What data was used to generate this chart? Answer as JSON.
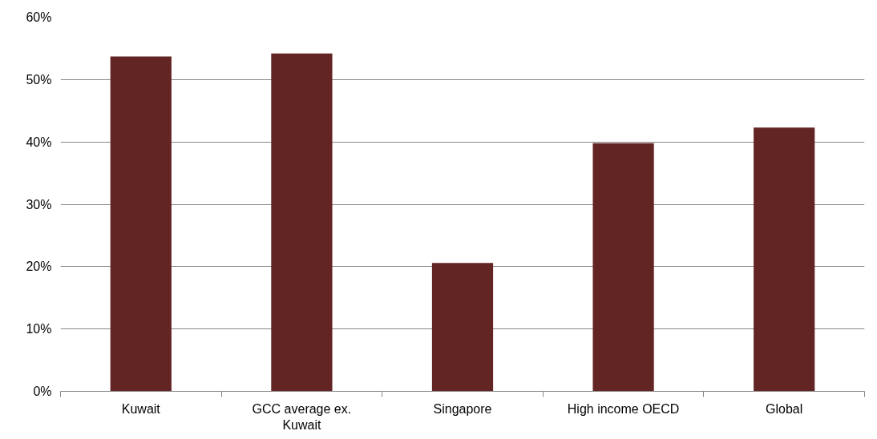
{
  "chart_data": {
    "type": "bar",
    "categories": [
      "Kuwait",
      "GCC average ex. Kuwait",
      "Singapore",
      "High income OECD",
      "Global"
    ],
    "values": [
      53.7,
      54.2,
      20.6,
      39.8,
      42.3
    ],
    "color": "#632523",
    "ylim": [
      0,
      60
    ],
    "yticks": [
      {
        "value": 0,
        "label": "0%"
      },
      {
        "value": 10,
        "label": "10%"
      },
      {
        "value": 20,
        "label": "20%"
      },
      {
        "value": 30,
        "label": "30%"
      },
      {
        "value": 40,
        "label": "40%"
      },
      {
        "value": 50,
        "label": "50%"
      },
      {
        "value": 60,
        "label": "60%"
      }
    ],
    "grid": "y"
  }
}
